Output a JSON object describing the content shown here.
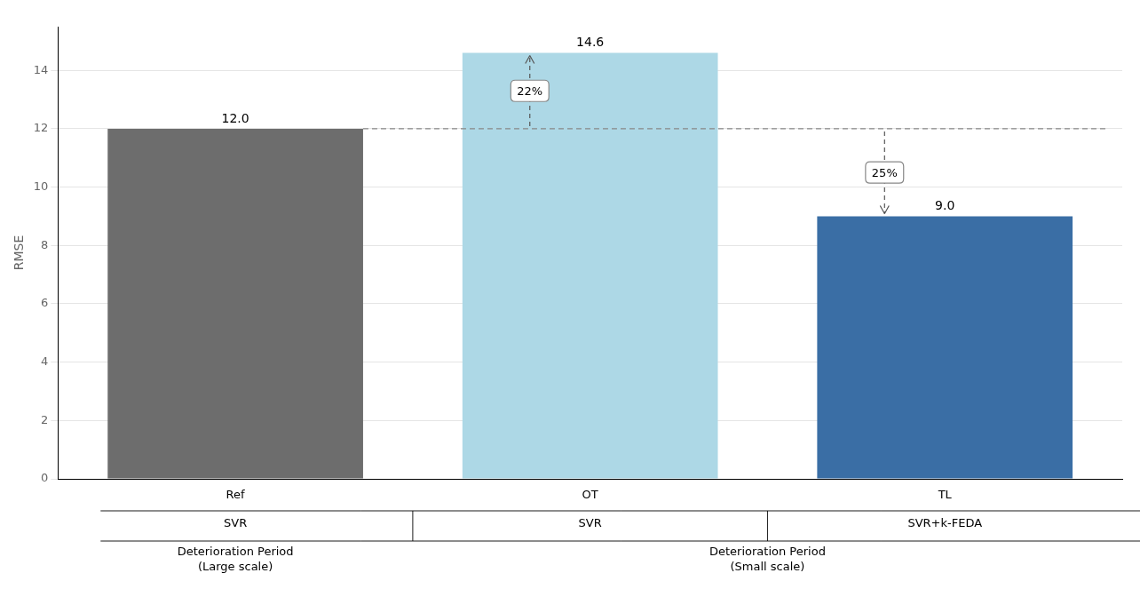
{
  "chart_data": {
    "type": "bar",
    "categories": [
      "Ref",
      "OT",
      "TL"
    ],
    "values": [
      12.0,
      14.6,
      9.0
    ],
    "value_labels": [
      "12.0",
      "14.6",
      "9.0"
    ],
    "data_labels": true,
    "colors": [
      "#6d6d6d",
      "#add8e6",
      "#3a6ea5"
    ],
    "ylabel": "RMSE",
    "ylim": [
      0,
      15.5
    ],
    "yticks": [
      0,
      2,
      4,
      6,
      8,
      10,
      12,
      14
    ],
    "grid": true,
    "reference_line": 12.0,
    "annotations": [
      {
        "text": "22%",
        "category": "OT"
      },
      {
        "text": "25%",
        "category": "TL"
      }
    ],
    "sub_labels": [
      "SVR",
      "SVR",
      "SVR+k-FEDA"
    ],
    "group_labels": [
      {
        "text": "Deterioration Period\n(Large scale)",
        "categories": [
          "Ref"
        ]
      },
      {
        "text": "Deterioration Period\n(Small scale)",
        "categories": [
          "OT",
          "TL"
        ]
      }
    ]
  }
}
